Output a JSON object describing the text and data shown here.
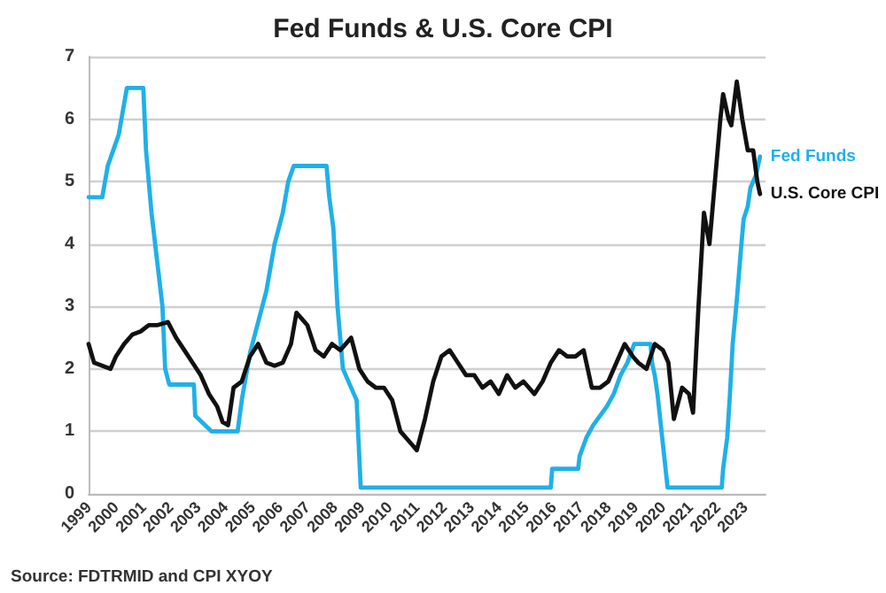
{
  "chart_data": {
    "type": "line",
    "title": "Fed Funds & U.S. Core CPI",
    "annotations": [
      "Source: FDTRMID and CPI XYOY"
    ],
    "xlim": [
      1999,
      2023.75
    ],
    "xticks": [
      1999,
      2000,
      2001,
      2002,
      2003,
      2004,
      2005,
      2006,
      2007,
      2008,
      2009,
      2010,
      2011,
      2012,
      2013,
      2014,
      2015,
      2016,
      2017,
      2018,
      2019,
      2020,
      2021,
      2022,
      2023
    ],
    "ylim": [
      0,
      7
    ],
    "yticks": [
      0,
      1,
      2,
      3,
      4,
      5,
      6,
      7
    ],
    "grid": "y",
    "legend": false,
    "marker": "none",
    "line_style": "solid",
    "series": [
      {
        "name": "Fed Funds",
        "color": "#1fb0e8",
        "x": [
          1999.0,
          1999.5,
          1999.6,
          1999.7,
          1999.9,
          2000.1,
          2000.2,
          2000.4,
          2001.0,
          2001.1,
          2001.3,
          2001.5,
          2001.7,
          2001.8,
          2001.95,
          2002.85,
          2002.9,
          2003.5,
          2004.45,
          2004.6,
          2004.9,
          2005.2,
          2005.5,
          2005.8,
          2006.1,
          2006.3,
          2006.5,
          2007.7,
          2007.8,
          2007.95,
          2008.1,
          2008.3,
          2008.8,
          2008.95,
          2015.9,
          2015.95,
          2016.9,
          2016.95,
          2017.2,
          2017.45,
          2017.95,
          2018.2,
          2018.45,
          2018.7,
          2018.95,
          2019.55,
          2019.6,
          2019.7,
          2019.8,
          2020.17,
          2022.15,
          2022.2,
          2022.35,
          2022.45,
          2022.55,
          2022.7,
          2022.85,
          2022.95,
          2023.1,
          2023.2,
          2023.4,
          2023.55
        ],
        "values": [
          4.75,
          4.75,
          5.0,
          5.25,
          5.5,
          5.75,
          6.0,
          6.5,
          6.5,
          5.5,
          4.5,
          3.75,
          3.0,
          2.0,
          1.75,
          1.75,
          1.25,
          1.0,
          1.0,
          1.5,
          2.25,
          2.75,
          3.25,
          4.0,
          4.5,
          5.0,
          5.25,
          5.25,
          4.75,
          4.25,
          3.0,
          2.0,
          1.5,
          0.1,
          0.1,
          0.4,
          0.4,
          0.6,
          0.9,
          1.1,
          1.4,
          1.6,
          1.9,
          2.1,
          2.4,
          2.4,
          2.1,
          1.9,
          1.6,
          0.1,
          0.1,
          0.4,
          0.9,
          1.6,
          2.4,
          3.1,
          3.9,
          4.4,
          4.6,
          4.9,
          5.1,
          5.4
        ]
      },
      {
        "name": "U.S. Core CPI",
        "color": "#111111",
        "x": [
          1999.0,
          1999.2,
          1999.5,
          1999.8,
          2000.0,
          2000.3,
          2000.6,
          2000.9,
          2001.2,
          2001.5,
          2001.9,
          2002.2,
          2002.5,
          2002.8,
          2003.1,
          2003.4,
          2003.7,
          2003.9,
          2004.1,
          2004.3,
          2004.6,
          2004.9,
          2005.2,
          2005.5,
          2005.8,
          2006.1,
          2006.4,
          2006.6,
          2006.8,
          2007.0,
          2007.3,
          2007.6,
          2007.9,
          2008.2,
          2008.6,
          2008.9,
          2009.2,
          2009.5,
          2009.8,
          2010.1,
          2010.4,
          2010.8,
          2011.0,
          2011.3,
          2011.6,
          2011.9,
          2012.2,
          2012.5,
          2012.8,
          2013.1,
          2013.4,
          2013.7,
          2014.0,
          2014.3,
          2014.6,
          2014.9,
          2015.3,
          2015.6,
          2015.9,
          2016.2,
          2016.5,
          2016.8,
          2017.1,
          2017.4,
          2017.7,
          2018.0,
          2018.3,
          2018.6,
          2018.9,
          2019.1,
          2019.4,
          2019.7,
          2020.0,
          2020.2,
          2020.4,
          2020.7,
          2020.95,
          2021.1,
          2021.3,
          2021.5,
          2021.7,
          2021.9,
          2022.1,
          2022.2,
          2022.4,
          2022.5,
          2022.7,
          2022.9,
          2023.1,
          2023.3,
          2023.45,
          2023.55
        ],
        "values": [
          2.4,
          2.1,
          2.05,
          2.0,
          2.2,
          2.4,
          2.55,
          2.6,
          2.7,
          2.7,
          2.75,
          2.5,
          2.3,
          2.1,
          1.9,
          1.6,
          1.4,
          1.15,
          1.1,
          1.7,
          1.8,
          2.2,
          2.4,
          2.1,
          2.05,
          2.1,
          2.4,
          2.9,
          2.8,
          2.7,
          2.3,
          2.2,
          2.4,
          2.3,
          2.5,
          2.0,
          1.8,
          1.7,
          1.7,
          1.5,
          1.0,
          0.8,
          0.7,
          1.2,
          1.8,
          2.2,
          2.3,
          2.1,
          1.9,
          1.9,
          1.7,
          1.8,
          1.6,
          1.9,
          1.7,
          1.8,
          1.6,
          1.8,
          2.1,
          2.3,
          2.2,
          2.2,
          2.3,
          1.7,
          1.7,
          1.8,
          2.1,
          2.4,
          2.2,
          2.1,
          2.0,
          2.4,
          2.3,
          2.1,
          1.2,
          1.7,
          1.6,
          1.3,
          3.0,
          4.5,
          4.0,
          5.0,
          6.0,
          6.4,
          6.0,
          5.9,
          6.6,
          6.0,
          5.5,
          5.5,
          5.0,
          4.8
        ]
      }
    ]
  }
}
